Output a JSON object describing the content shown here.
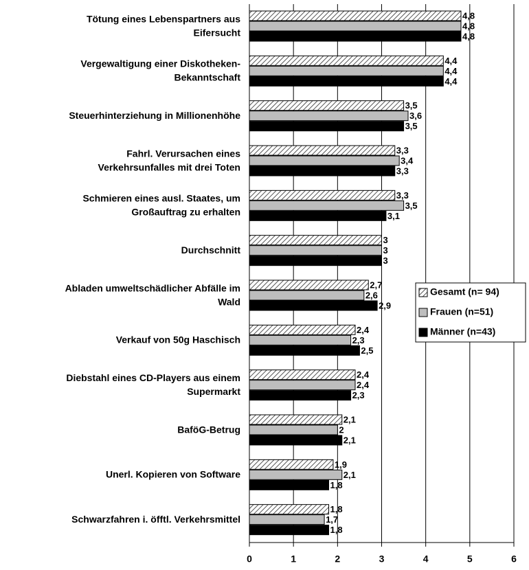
{
  "chart_data": {
    "type": "hbar",
    "categories": [
      [
        "Tötung eines Lebenspartners aus",
        "Eifersucht"
      ],
      [
        "Vergewaltigung einer Diskotheken-",
        "Bekanntschaft"
      ],
      [
        "Steuerhinterziehung in Millionenhöhe"
      ],
      [
        "Fahrl. Verursachen eines",
        "Verkehrsunfalles mit drei Toten"
      ],
      [
        "Schmieren eines ausl. Staates, um",
        "Großauftrag zu erhalten"
      ],
      [
        "Durchschnitt"
      ],
      [
        "Abladen umweltschädlicher Abfälle im",
        "Wald"
      ],
      [
        "Verkauf von 50g Haschisch"
      ],
      [
        "Diebstahl eines CD-Players aus einem",
        "Supermarkt"
      ],
      [
        "BaföG-Betrug"
      ],
      [
        "Unerl. Kopieren von Software"
      ],
      [
        "Schwarzfahren i. öfftl. Verkehrsmittel"
      ]
    ],
    "series": [
      {
        "name": "Gesamt (n= 94)",
        "color": "#555555",
        "hatch": true,
        "values": [
          4.8,
          4.4,
          3.5,
          3.3,
          3.3,
          3,
          2.7,
          2.4,
          2.4,
          2.1,
          1.9,
          1.8
        ],
        "value_labels": [
          "4,8",
          "4,4",
          "3,5",
          "3,3",
          "3,3",
          "3",
          "2,7",
          "2,4",
          "2,4",
          "2,1",
          "1,9",
          "1,8"
        ]
      },
      {
        "name": "Frauen (n=51)",
        "color": "#bdbdbd",
        "values": [
          4.8,
          4.4,
          3.6,
          3.4,
          3.5,
          3,
          2.6,
          2.3,
          2.4,
          2,
          2.1,
          1.7
        ],
        "value_labels": [
          "4,8",
          "4,4",
          "3,6",
          "3,4",
          "3,5",
          "3",
          "2,6",
          "2,3",
          "2,4",
          "2",
          "2,1",
          "1,7"
        ]
      },
      {
        "name": "Männer (n=43)",
        "color": "#000000",
        "values": [
          4.8,
          4.4,
          3.5,
          3.3,
          3.1,
          3,
          2.9,
          2.5,
          2.3,
          2.1,
          1.8,
          1.8
        ],
        "value_labels": [
          "4,8",
          "4,4",
          "3,5",
          "3,3",
          "3,1",
          "3",
          "2,9",
          "2,5",
          "2,3",
          "2,1",
          "1,8",
          "1,8"
        ]
      }
    ],
    "xlim": [
      0,
      6
    ],
    "xticks": [
      0,
      1,
      2,
      3,
      4,
      5,
      6
    ],
    "grid": true,
    "legend": "right"
  }
}
